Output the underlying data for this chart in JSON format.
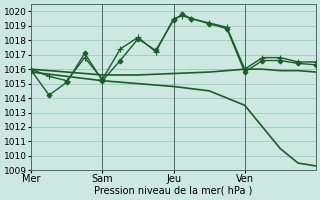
{
  "bg_color": "#cce8e0",
  "grid_color": "#99ccbb",
  "line_color": "#1a5c2a",
  "title": "Pression niveau de la mer( hPa )",
  "ylim": [
    1009,
    1020.5
  ],
  "yticks": [
    1009,
    1010,
    1011,
    1012,
    1013,
    1014,
    1015,
    1016,
    1017,
    1018,
    1019,
    1020
  ],
  "vline_positions": [
    8,
    16,
    24
  ],
  "xtick_pos": [
    0,
    8,
    16,
    24
  ],
  "xtick_labels": [
    "Mer",
    "Sam",
    "Jeu",
    "Ven"
  ],
  "xlim": [
    0,
    32
  ],
  "series": [
    {
      "x": [
        0,
        4,
        8,
        12,
        16,
        20,
        24,
        26,
        28,
        30,
        32
      ],
      "y": [
        1015.8,
        1015.5,
        1015.2,
        1015.0,
        1014.8,
        1014.5,
        1013.5,
        1012.0,
        1010.5,
        1009.5,
        1009.3
      ],
      "marker": null,
      "linewidth": 1.2,
      "linestyle": "-"
    },
    {
      "x": [
        0,
        4,
        8,
        12,
        16,
        20,
        24,
        26,
        28,
        30,
        32
      ],
      "y": [
        1016.0,
        1015.8,
        1015.6,
        1015.6,
        1015.7,
        1015.8,
        1016.0,
        1016.0,
        1015.9,
        1015.9,
        1015.8
      ],
      "marker": null,
      "linewidth": 1.2,
      "linestyle": "-"
    },
    {
      "x": [
        0,
        2,
        4,
        6,
        8,
        10,
        12,
        14,
        16,
        17,
        18,
        20,
        22,
        24,
        26,
        28,
        30,
        32
      ],
      "y": [
        1016.0,
        1015.5,
        1015.2,
        1016.8,
        1015.3,
        1017.4,
        1018.2,
        1017.2,
        1019.5,
        1019.7,
        1019.5,
        1019.2,
        1018.9,
        1016.0,
        1016.8,
        1016.8,
        1016.5,
        1016.5
      ],
      "marker": "+",
      "markersize": 4,
      "linewidth": 1.0,
      "linestyle": "-"
    },
    {
      "x": [
        0,
        2,
        4,
        6,
        8,
        10,
        12,
        14,
        16,
        17,
        18,
        20,
        22,
        24,
        26,
        28,
        30,
        32
      ],
      "y": [
        1015.9,
        1014.2,
        1015.1,
        1017.1,
        1015.2,
        1016.6,
        1018.1,
        1017.3,
        1019.4,
        1019.8,
        1019.5,
        1019.15,
        1018.8,
        1015.8,
        1016.6,
        1016.6,
        1016.4,
        1016.3
      ],
      "marker": "D",
      "markersize": 2.5,
      "linewidth": 1.0,
      "linestyle": "-"
    }
  ]
}
